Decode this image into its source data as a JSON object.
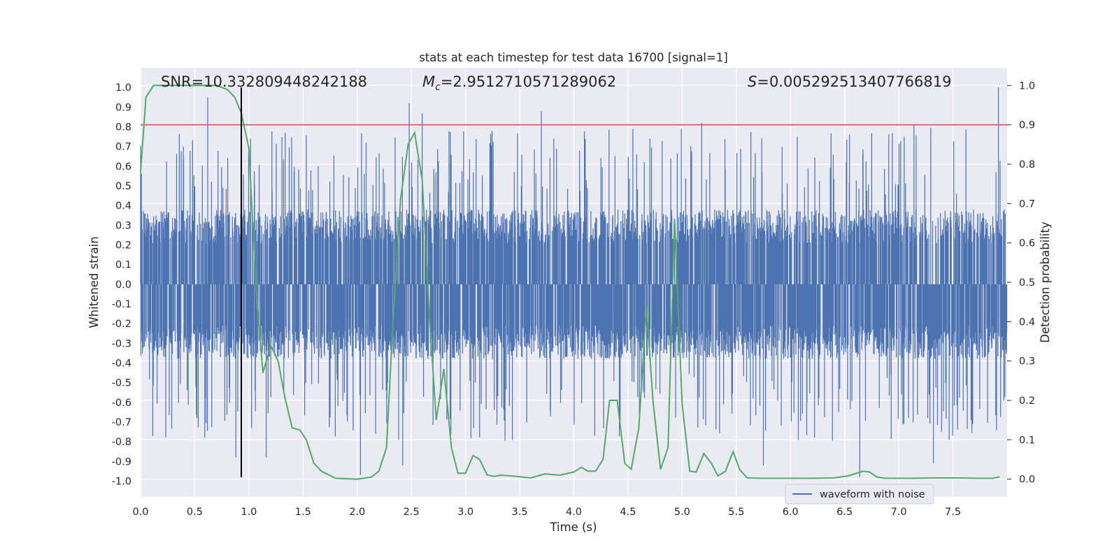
{
  "chart_data": {
    "type": "line",
    "title": "stats at each timestep for test data 16700 [signal=1]",
    "xlabel": "Time (s)",
    "ylabel_left": "Whitened strain",
    "ylabel_right": "Detection probability",
    "xlim": [
      0.0,
      8.0
    ],
    "ylim_left": [
      -1.08,
      1.1
    ],
    "ylim_right": [
      -0.045,
      1.045
    ],
    "x_ticks": [
      "0.0",
      "0.5",
      "1.0",
      "1.5",
      "2.0",
      "2.5",
      "3.0",
      "3.5",
      "4.0",
      "4.5",
      "5.0",
      "5.5",
      "6.0",
      "6.5",
      "7.0",
      "7.5"
    ],
    "y_left_ticks": [
      "1.0",
      "0.9",
      "0.8",
      "0.7",
      "0.6",
      "0.5",
      "0.4",
      "0.3",
      "0.2",
      "0.1",
      "0.0",
      "-0.1",
      "-0.2",
      "-0.3",
      "-0.4",
      "-0.5",
      "-0.6",
      "-0.7",
      "-0.8",
      "-0.9",
      "-1.0"
    ],
    "y_right_ticks": [
      "1.0",
      "0.9",
      "0.8",
      "0.7",
      "0.6",
      "0.5",
      "0.4",
      "0.3",
      "0.2",
      "0.1",
      "0.0"
    ],
    "grid": true,
    "legend": {
      "placement": "lower-right",
      "entries": [
        "waveform with noise"
      ]
    },
    "annotations": {
      "snr": "SNR=10.332809448242188",
      "mc_prefix": "M",
      "mc_sub": "c",
      "mc_value": "=2.9512710571289062",
      "s_prefix": "S",
      "s_value": "=0.005292513407766819"
    },
    "threshold_line": {
      "y_right": 0.9,
      "color": "#c44e52"
    },
    "marker_line": {
      "x": 0.93,
      "y_range": [
        -0.98,
        1.0
      ],
      "color": "#000000"
    },
    "waveform": {
      "name": "waveform with noise",
      "color": "#4c72b0",
      "duration": 8.0,
      "base_amplitude": 0.38,
      "peaks": [
        {
          "x": 0.62,
          "y": 0.95
        },
        {
          "x": 2.48,
          "y": 0.92
        },
        {
          "x": 2.6,
          "y": 0.87
        },
        {
          "x": 3.7,
          "y": 0.88
        },
        {
          "x": 5.18,
          "y": 0.82
        },
        {
          "x": 7.14,
          "y": 0.81
        },
        {
          "x": 7.92,
          "y": 1.0
        },
        {
          "x": 0.88,
          "y": -0.88
        },
        {
          "x": 1.16,
          "y": -0.88
        },
        {
          "x": 2.03,
          "y": -0.97
        },
        {
          "x": 2.42,
          "y": -0.92
        },
        {
          "x": 5.75,
          "y": -0.92
        },
        {
          "x": 6.64,
          "y": -0.98
        },
        {
          "x": 7.32,
          "y": -0.91
        }
      ]
    },
    "probability": {
      "color": "#55a868",
      "x": [
        0.0,
        0.05,
        0.12,
        0.3,
        0.5,
        0.7,
        0.8,
        0.87,
        0.93,
        1.0,
        1.07,
        1.13,
        1.2,
        1.27,
        1.33,
        1.4,
        1.47,
        1.53,
        1.6,
        1.67,
        1.8,
        2.0,
        2.13,
        2.2,
        2.27,
        2.33,
        2.4,
        2.47,
        2.53,
        2.6,
        2.67,
        2.73,
        2.8,
        2.87,
        2.93,
        3.0,
        3.07,
        3.13,
        3.2,
        3.27,
        3.33,
        3.47,
        3.6,
        3.73,
        3.87,
        4.0,
        4.07,
        4.13,
        4.2,
        4.27,
        4.33,
        4.4,
        4.47,
        4.53,
        4.6,
        4.67,
        4.73,
        4.8,
        4.87,
        4.93,
        5.0,
        5.07,
        5.13,
        5.2,
        5.27,
        5.33,
        5.4,
        5.47,
        5.53,
        5.6,
        5.73,
        5.87,
        6.0,
        6.2,
        6.4,
        6.53,
        6.67,
        6.73,
        6.8,
        6.87,
        6.93,
        7.0,
        7.13,
        7.33,
        7.53,
        7.73,
        7.87,
        7.93
      ],
      "values": [
        0.78,
        0.97,
        1.0,
        1.0,
        1.0,
        1.0,
        0.99,
        0.97,
        0.93,
        0.84,
        0.46,
        0.27,
        0.34,
        0.3,
        0.21,
        0.13,
        0.125,
        0.1,
        0.04,
        0.02,
        0.002,
        0.0,
        0.005,
        0.02,
        0.08,
        0.4,
        0.71,
        0.85,
        0.88,
        0.76,
        0.4,
        0.15,
        0.28,
        0.08,
        0.015,
        0.015,
        0.06,
        0.05,
        0.01,
        0.007,
        0.01,
        0.007,
        0.003,
        0.013,
        0.01,
        0.018,
        0.03,
        0.02,
        0.02,
        0.05,
        0.2,
        0.2,
        0.04,
        0.025,
        0.13,
        0.44,
        0.2,
        0.025,
        0.08,
        0.66,
        0.19,
        0.02,
        0.018,
        0.065,
        0.04,
        0.008,
        0.02,
        0.07,
        0.025,
        0.003,
        0.002,
        0.002,
        0.002,
        0.002,
        0.003,
        0.008,
        0.02,
        0.018,
        0.005,
        0.002,
        0.002,
        0.002,
        0.002,
        0.003,
        0.003,
        0.002,
        0.002,
        0.006
      ]
    }
  }
}
